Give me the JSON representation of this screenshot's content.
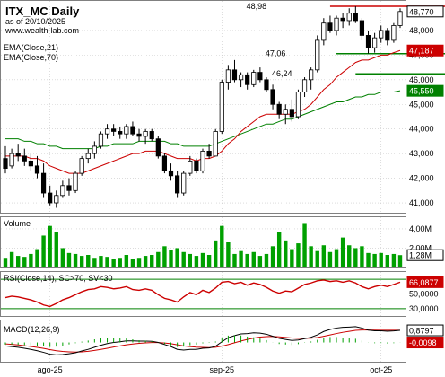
{
  "header": {
    "title": "ITX_MC Daily",
    "subtitle": "as of 20/10/2025",
    "url": "www.wealth-lab.com"
  },
  "colors": {
    "background": "#ffffff",
    "grid": "#c8c8c8",
    "candle_up": "#ffffff",
    "candle_down": "#000000",
    "ema21": "#cc0000",
    "ema70": "#008000",
    "volume": "#00a000",
    "rsi": "#cc0000",
    "rsi_bands": "#008000",
    "macd": "#000000",
    "macd_signal": "#cc0000",
    "macd_hist": "#00a000",
    "hline": "#cc0000",
    "support": "#008000"
  },
  "chart_data": [
    {
      "type": "candlestick",
      "legend": [
        "EMA(Close,21)",
        "EMA(Close,70)"
      ],
      "y_ticks": [
        41.0,
        42.0,
        43.0,
        44.0,
        45.0,
        46.0,
        47.0,
        48.0
      ],
      "y_tick_labels": [
        "41,000",
        "42,000",
        "43,000",
        "44,000",
        "45,000",
        "46,000",
        "47,000",
        "48,000"
      ],
      "ylim": [
        40.6,
        49.2
      ],
      "x_labels": [
        {
          "index": 7,
          "label": "ago-25"
        },
        {
          "index": 34,
          "label": "sep-25"
        },
        {
          "index": 59,
          "label": "oct-25"
        }
      ],
      "last_value_labels": [
        {
          "value": 48.77,
          "label": "48,770",
          "style": "dark"
        },
        {
          "value": 47.187,
          "label": "47,187",
          "style": "red"
        },
        {
          "value": 45.55,
          "label": "45,550",
          "style": "green"
        }
      ],
      "annotations": [
        {
          "text": "48,98",
          "value": 48.98,
          "index": 43
        },
        {
          "text": "47,06",
          "value": 47.06,
          "index": 46
        },
        {
          "text": "46,24",
          "value": 46.24,
          "index": 47
        }
      ],
      "resistance": {
        "value": 48.98,
        "from_index": 51,
        "to_index": 75
      },
      "supports": [
        {
          "value": 47.06,
          "from_index": 52,
          "to_index": 75
        },
        {
          "value": 46.24,
          "from_index": 55,
          "to_index": 75
        }
      ],
      "ohlc": [
        [
          42.8,
          43.3,
          42.2,
          42.4
        ],
        [
          42.5,
          43.2,
          42.4,
          43.0
        ],
        [
          43.0,
          43.4,
          42.7,
          42.9
        ],
        [
          42.9,
          43.2,
          42.5,
          42.7
        ],
        [
          42.7,
          43.0,
          42.3,
          42.5
        ],
        [
          42.5,
          42.9,
          42.0,
          42.2
        ],
        [
          42.2,
          42.6,
          41.2,
          41.4
        ],
        [
          41.4,
          41.7,
          40.9,
          41.0
        ],
        [
          41.0,
          41.5,
          40.8,
          41.3
        ],
        [
          41.3,
          41.9,
          41.2,
          41.7
        ],
        [
          41.7,
          42.0,
          41.3,
          41.5
        ],
        [
          41.5,
          42.3,
          41.4,
          42.2
        ],
        [
          42.2,
          42.9,
          42.1,
          42.8
        ],
        [
          42.8,
          43.2,
          42.6,
          43.0
        ],
        [
          43.0,
          43.5,
          42.8,
          43.3
        ],
        [
          43.3,
          43.9,
          43.2,
          43.8
        ],
        [
          43.8,
          44.2,
          43.6,
          44.0
        ],
        [
          44.0,
          44.2,
          43.7,
          43.9
        ],
        [
          43.9,
          44.1,
          43.6,
          43.8
        ],
        [
          43.8,
          44.2,
          43.6,
          44.1
        ],
        [
          44.1,
          44.3,
          43.7,
          43.8
        ],
        [
          43.8,
          44.0,
          43.5,
          43.7
        ],
        [
          43.7,
          44.0,
          43.4,
          43.9
        ],
        [
          43.9,
          44.0,
          43.5,
          43.6
        ],
        [
          43.6,
          43.7,
          42.8,
          42.9
        ],
        [
          42.9,
          43.0,
          42.2,
          42.3
        ],
        [
          42.3,
          42.6,
          41.9,
          42.1
        ],
        [
          42.1,
          42.3,
          41.2,
          41.4
        ],
        [
          41.4,
          42.3,
          41.3,
          42.2
        ],
        [
          42.2,
          42.9,
          42.1,
          42.7
        ],
        [
          42.7,
          42.8,
          42.2,
          42.3
        ],
        [
          42.3,
          43.2,
          42.2,
          43.1
        ],
        [
          43.1,
          43.4,
          42.8,
          42.9
        ],
        [
          42.9,
          44.0,
          42.9,
          43.9
        ],
        [
          43.9,
          46.0,
          43.8,
          45.9
        ],
        [
          45.9,
          46.6,
          45.6,
          46.4
        ],
        [
          46.4,
          46.8,
          45.9,
          46.0
        ],
        [
          46.0,
          46.3,
          45.7,
          46.2
        ],
        [
          46.2,
          46.3,
          45.6,
          45.8
        ],
        [
          45.8,
          46.4,
          45.7,
          46.3
        ],
        [
          46.3,
          46.5,
          45.9,
          46.0
        ],
        [
          46.0,
          46.1,
          45.5,
          45.6
        ],
        [
          45.6,
          45.8,
          44.8,
          45.0
        ],
        [
          45.0,
          45.1,
          44.4,
          44.6
        ],
        [
          44.6,
          45.0,
          44.2,
          44.8
        ],
        [
          44.8,
          45.2,
          44.3,
          44.5
        ],
        [
          44.5,
          45.6,
          44.4,
          45.5
        ],
        [
          45.5,
          46.1,
          45.3,
          46.0
        ],
        [
          46.0,
          46.5,
          45.6,
          46.4
        ],
        [
          46.4,
          47.8,
          46.3,
          47.6
        ],
        [
          47.6,
          48.5,
          47.4,
          48.3
        ],
        [
          48.3,
          48.6,
          47.9,
          48.0
        ],
        [
          48.0,
          48.6,
          47.8,
          48.5
        ],
        [
          48.5,
          48.7,
          48.1,
          48.4
        ],
        [
          48.4,
          48.9,
          48.2,
          48.7
        ],
        [
          48.7,
          48.98,
          48.3,
          48.4
        ],
        [
          48.4,
          48.5,
          47.6,
          47.8
        ],
        [
          47.8,
          48.0,
          47.06,
          47.3
        ],
        [
          47.3,
          47.9,
          47.1,
          47.7
        ],
        [
          47.7,
          48.2,
          47.5,
          48.0
        ],
        [
          48.0,
          48.1,
          47.4,
          47.6
        ],
        [
          47.6,
          48.3,
          47.5,
          48.2
        ],
        [
          48.2,
          48.9,
          48.1,
          48.77
        ]
      ],
      "ema21": [
        42.9,
        42.9,
        42.9,
        42.9,
        42.8,
        42.8,
        42.7,
        42.5,
        42.4,
        42.3,
        42.2,
        42.2,
        42.2,
        42.3,
        42.4,
        42.5,
        42.6,
        42.7,
        42.8,
        42.9,
        43.0,
        43.0,
        43.1,
        43.1,
        43.1,
        43.0,
        42.9,
        42.8,
        42.8,
        42.8,
        42.7,
        42.8,
        42.8,
        42.9,
        43.1,
        43.4,
        43.6,
        43.9,
        44.1,
        44.3,
        44.5,
        44.6,
        44.6,
        44.6,
        44.6,
        44.6,
        44.7,
        44.8,
        45.0,
        45.3,
        45.6,
        45.8,
        46.1,
        46.3,
        46.5,
        46.7,
        46.8,
        46.8,
        46.9,
        47.0,
        47.0,
        47.1,
        47.187
      ],
      "ema70": [
        43.6,
        43.6,
        43.6,
        43.5,
        43.5,
        43.4,
        43.4,
        43.3,
        43.3,
        43.2,
        43.2,
        43.2,
        43.2,
        43.2,
        43.2,
        43.3,
        43.3,
        43.4,
        43.4,
        43.4,
        43.4,
        43.5,
        43.5,
        43.5,
        43.5,
        43.5,
        43.4,
        43.4,
        43.3,
        43.3,
        43.3,
        43.3,
        43.3,
        43.4,
        43.5,
        43.6,
        43.7,
        43.8,
        43.9,
        44.0,
        44.1,
        44.2,
        44.2,
        44.3,
        44.4,
        44.4,
        44.5,
        44.6,
        44.7,
        44.8,
        44.9,
        45.0,
        45.1,
        45.1,
        45.2,
        45.3,
        45.3,
        45.4,
        45.4,
        45.5,
        45.5,
        45.5,
        45.55
      ]
    },
    {
      "type": "bar",
      "title": "Volume",
      "y_ticks": [
        2.0,
        4.0
      ],
      "y_tick_labels": [
        "2,00M",
        "4,00M"
      ],
      "ylim": [
        0,
        5.2
      ],
      "last_value_label": "1,28M",
      "values": [
        1.0,
        1.6,
        1.2,
        1.1,
        1.4,
        1.9,
        3.3,
        4.3,
        3.7,
        2.0,
        1.5,
        1.4,
        1.2,
        1.3,
        1.0,
        1.2,
        1.1,
        0.9,
        1.0,
        1.3,
        0.9,
        1.0,
        1.2,
        1.3,
        1.6,
        2.2,
        1.8,
        2.0,
        1.6,
        1.4,
        1.2,
        1.5,
        1.3,
        2.8,
        4.3,
        2.6,
        1.4,
        1.7,
        1.4,
        1.6,
        1.2,
        1.4,
        2.2,
        3.7,
        2.8,
        1.9,
        2.5,
        4.6,
        2.2,
        1.7,
        2.3,
        1.6,
        1.9,
        3.1,
        2.3,
        2.0,
        2.2,
        1.5,
        1.4,
        1.5,
        1.3,
        1.4,
        1.28
      ]
    },
    {
      "type": "line",
      "title": "RSI(Close,14), SC>70, SV<30",
      "y_ticks": [
        30,
        50
      ],
      "y_tick_labels": [
        "30,0000",
        "50,0000"
      ],
      "ylim": [
        20,
        80
      ],
      "bands": [
        30,
        70
      ],
      "last_value_label": "66,0877",
      "values": [
        45,
        47,
        46,
        44,
        42,
        39,
        35,
        33,
        37,
        42,
        45,
        49,
        53,
        56,
        57,
        60,
        59,
        57,
        58,
        60,
        56,
        55,
        57,
        55,
        49,
        44,
        42,
        39,
        46,
        52,
        49,
        55,
        52,
        58,
        66,
        67,
        64,
        66,
        62,
        65,
        63,
        59,
        54,
        51,
        54,
        53,
        58,
        63,
        65,
        68,
        69,
        67,
        68,
        66,
        68,
        65,
        60,
        57,
        60,
        62,
        60,
        63,
        66.0877
      ]
    },
    {
      "type": "line",
      "title": "MACD(12,26,9)",
      "last_value_labels": [
        {
          "value": 0.8797,
          "label": "0,8797",
          "style": "dark"
        },
        {
          "value": -0.0098,
          "label": "-0,0098",
          "style": "red"
        }
      ],
      "ylim": [
        -1.4,
        1.6
      ],
      "macd": [
        -0.25,
        -0.3,
        -0.35,
        -0.42,
        -0.5,
        -0.6,
        -0.72,
        -0.85,
        -0.9,
        -0.88,
        -0.82,
        -0.75,
        -0.62,
        -0.5,
        -0.35,
        -0.2,
        -0.08,
        0.0,
        0.05,
        0.12,
        0.12,
        0.1,
        0.1,
        0.08,
        0.0,
        -0.15,
        -0.3,
        -0.5,
        -0.55,
        -0.5,
        -0.5,
        -0.42,
        -0.4,
        -0.28,
        0.05,
        0.35,
        0.5,
        0.62,
        0.65,
        0.7,
        0.68,
        0.6,
        0.45,
        0.3,
        0.22,
        0.15,
        0.18,
        0.28,
        0.38,
        0.55,
        0.8,
        0.95,
        1.05,
        1.1,
        1.12,
        1.15,
        1.05,
        0.9,
        0.85,
        0.85,
        0.82,
        0.84,
        0.8797
      ],
      "signal": [
        -0.1,
        -0.14,
        -0.18,
        -0.23,
        -0.29,
        -0.36,
        -0.43,
        -0.52,
        -0.6,
        -0.65,
        -0.68,
        -0.7,
        -0.68,
        -0.64,
        -0.58,
        -0.5,
        -0.42,
        -0.33,
        -0.25,
        -0.17,
        -0.11,
        -0.06,
        -0.03,
        -0.01,
        -0.01,
        -0.04,
        -0.09,
        -0.17,
        -0.25,
        -0.3,
        -0.34,
        -0.36,
        -0.37,
        -0.35,
        -0.27,
        -0.15,
        -0.02,
        0.11,
        0.22,
        0.32,
        0.39,
        0.43,
        0.44,
        0.41,
        0.37,
        0.33,
        0.3,
        0.3,
        0.31,
        0.36,
        0.45,
        0.55,
        0.65,
        0.74,
        0.81,
        0.88,
        0.91,
        0.91,
        0.9,
        0.89,
        0.89,
        0.89,
        0.8895
      ]
    }
  ]
}
